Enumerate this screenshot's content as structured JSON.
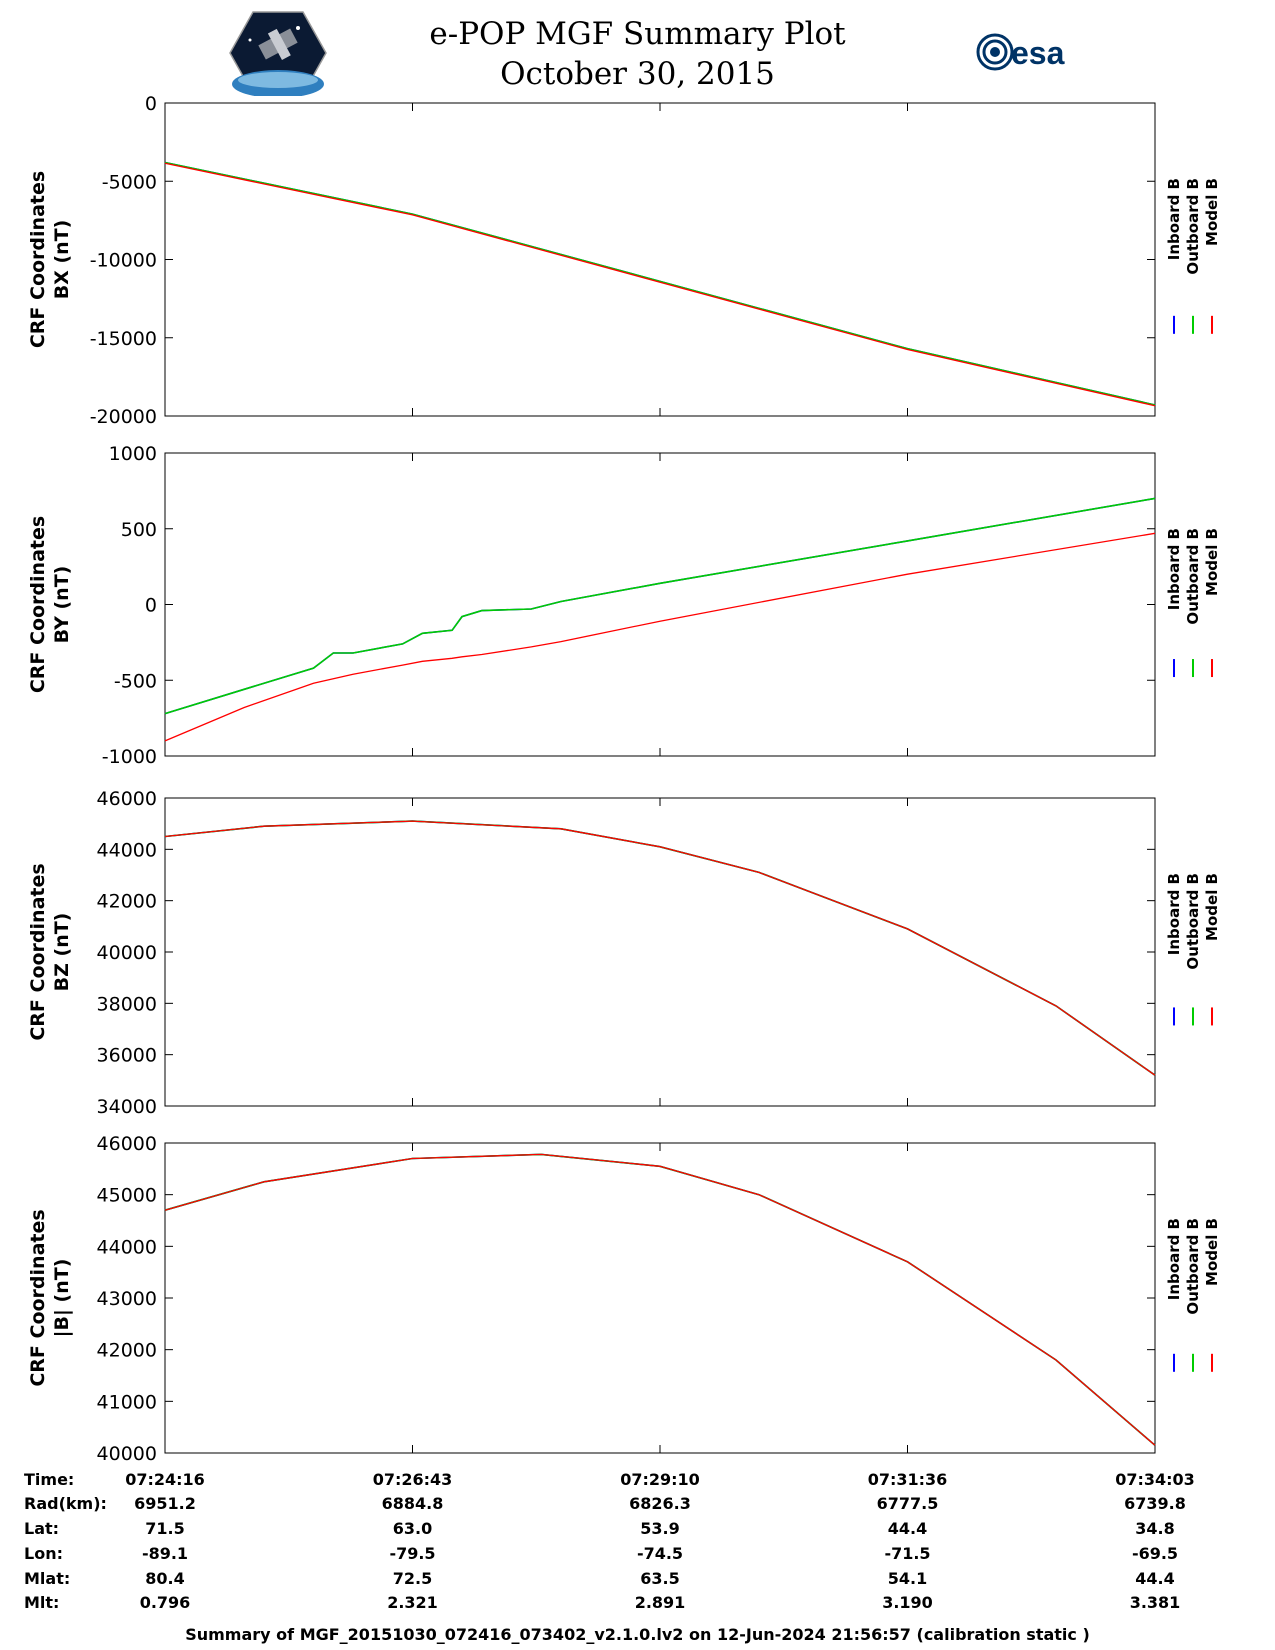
{
  "header": {
    "title": "e-POP MGF Summary Plot",
    "date": "October 30, 2015",
    "left_logo": "cassiope-mission-logo",
    "right_logo_text": "esa"
  },
  "colors": {
    "inboard": "#0000ff",
    "outboard": "#00cc00",
    "model": "#ff0000",
    "axis": "#000000"
  },
  "chart_data": [
    {
      "type": "line",
      "ylabel_1": "CRF Coordinates",
      "ylabel_2": "BX (nT)",
      "ylim": [
        -20000,
        0
      ],
      "yticks": [
        0,
        -5000,
        -10000,
        -15000,
        -20000
      ],
      "ytick_labels": [
        "0",
        "-5000",
        "-10000",
        "-15000",
        "-20000"
      ],
      "legend": [
        "Inboard B",
        "Outboard B",
        "Model B"
      ],
      "x": [
        0,
        0.25,
        0.5,
        0.75,
        1
      ],
      "series": [
        {
          "name": "Inboard B",
          "values": [
            -3800,
            -7100,
            -11400,
            -15700,
            -19300
          ]
        },
        {
          "name": "Outboard B",
          "values": [
            -3800,
            -7100,
            -11400,
            -15700,
            -19300
          ]
        },
        {
          "name": "Model B",
          "values": [
            -3850,
            -7150,
            -11450,
            -15750,
            -19350
          ]
        }
      ]
    },
    {
      "type": "line",
      "ylabel_1": "CRF Coordinates",
      "ylabel_2": "BY (nT)",
      "ylim": [
        -1000,
        1000
      ],
      "yticks": [
        1000,
        500,
        0,
        -500,
        -1000
      ],
      "ytick_labels": [
        "1000",
        "500",
        "0",
        "-500",
        "-1000"
      ],
      "legend": [
        "Inboard B",
        "Outboard B",
        "Model B"
      ],
      "x": [
        0,
        0.08,
        0.15,
        0.17,
        0.19,
        0.24,
        0.26,
        0.29,
        0.3,
        0.32,
        0.37,
        0.4,
        0.5,
        0.75,
        1
      ],
      "series": [
        {
          "name": "Inboard B",
          "values": [
            -720,
            -560,
            -420,
            -320,
            -320,
            -260,
            -190,
            -170,
            -80,
            -40,
            -30,
            20,
            140,
            420,
            700
          ]
        },
        {
          "name": "Outboard B",
          "values": [
            -720,
            -560,
            -420,
            -320,
            -320,
            -260,
            -190,
            -170,
            -80,
            -40,
            -30,
            20,
            140,
            420,
            700
          ]
        },
        {
          "name": "Model B",
          "values": [
            -900,
            -680,
            -520,
            -490,
            -460,
            -400,
            -375,
            -355,
            -345,
            -330,
            -280,
            -245,
            -110,
            200,
            470
          ]
        }
      ]
    },
    {
      "type": "line",
      "ylabel_1": "CRF Coordinates",
      "ylabel_2": "BZ (nT)",
      "ylim": [
        34000,
        46000
      ],
      "yticks": [
        46000,
        44000,
        42000,
        40000,
        38000,
        36000,
        34000
      ],
      "ytick_labels": [
        "46000",
        "44000",
        "42000",
        "40000",
        "38000",
        "36000",
        "34000"
      ],
      "legend": [
        "Inboard B",
        "Outboard B",
        "Model B"
      ],
      "x": [
        0,
        0.1,
        0.25,
        0.4,
        0.5,
        0.6,
        0.75,
        0.9,
        1
      ],
      "series": [
        {
          "name": "Inboard B",
          "values": [
            44500,
            44900,
            45100,
            44800,
            44100,
            43100,
            40900,
            37900,
            35200
          ]
        },
        {
          "name": "Outboard B",
          "values": [
            44500,
            44900,
            45100,
            44800,
            44100,
            43100,
            40900,
            37900,
            35200
          ]
        },
        {
          "name": "Model B",
          "values": [
            44500,
            44900,
            45100,
            44800,
            44100,
            43100,
            40900,
            37900,
            35200
          ]
        }
      ]
    },
    {
      "type": "line",
      "ylabel_1": "CRF Coordinates",
      "ylabel_2": "|B| (nT)",
      "ylim": [
        40000,
        46000
      ],
      "yticks": [
        46000,
        45000,
        44000,
        43000,
        42000,
        41000,
        40000
      ],
      "ytick_labels": [
        "46000",
        "45000",
        "44000",
        "43000",
        "42000",
        "41000",
        "40000"
      ],
      "legend": [
        "Inboard B",
        "Outboard B",
        "Model B"
      ],
      "x": [
        0,
        0.1,
        0.25,
        0.38,
        0.5,
        0.6,
        0.75,
        0.9,
        1
      ],
      "series": [
        {
          "name": "Inboard B",
          "values": [
            44700,
            45250,
            45700,
            45780,
            45550,
            45000,
            43700,
            41800,
            40150
          ]
        },
        {
          "name": "Outboard B",
          "values": [
            44700,
            45250,
            45700,
            45780,
            45550,
            45000,
            43700,
            41800,
            40150
          ]
        },
        {
          "name": "Model B",
          "values": [
            44700,
            45250,
            45700,
            45780,
            45550,
            45000,
            43700,
            41800,
            40150
          ]
        }
      ]
    }
  ],
  "info_table": {
    "labels": [
      "Time:",
      "Rad(km):",
      "Lat:",
      "Lon:",
      "Mlat:",
      "Mlt:"
    ],
    "columns": [
      [
        "07:24:16",
        "6951.2",
        "71.5",
        "-89.1",
        "80.4",
        "0.796"
      ],
      [
        "07:26:43",
        "6884.8",
        "63.0",
        "-79.5",
        "72.5",
        "2.321"
      ],
      [
        "07:29:10",
        "6826.3",
        "53.9",
        "-74.5",
        "63.5",
        "2.891"
      ],
      [
        "07:31:36",
        "6777.5",
        "44.4",
        "-71.5",
        "54.1",
        "3.190"
      ],
      [
        "07:34:03",
        "6739.8",
        "34.8",
        "-69.5",
        "44.4",
        "3.381"
      ]
    ]
  },
  "footer": "Summary of MGF_20151030_072416_073402_v2.1.0.lv2 on 12-Jun-2024 21:56:57 (calibration static )"
}
